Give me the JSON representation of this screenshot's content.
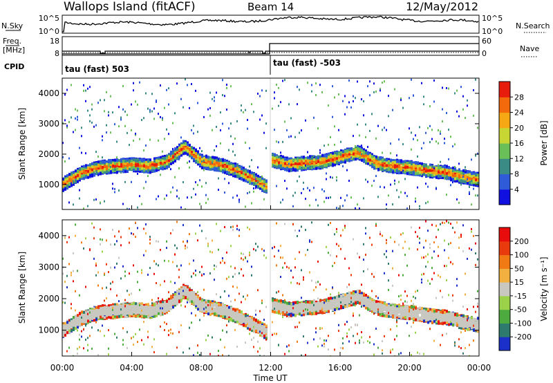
{
  "header": {
    "site": "Wallops Island (fitACF)",
    "beam": "Beam 14",
    "date": "12/May/2012"
  },
  "noise_panel": {
    "left_label": "N.Sky",
    "right_label": "N.Search",
    "left_ticks": [
      "10^5",
      "10^0"
    ],
    "right_ticks": [
      "10^5",
      "10^0"
    ]
  },
  "freq_panel": {
    "left_label": "Freq.",
    "left_unit": "[MHz]",
    "right_label": "Nave",
    "left_ticks": [
      "18",
      "8"
    ],
    "right_ticks": [
      "60",
      "0"
    ]
  },
  "cpid": {
    "label": "CPID",
    "segments": [
      {
        "text": "tau (fast) 503",
        "start_hour": 0
      },
      {
        "text": "tau (fast) -503",
        "start_hour": 12
      }
    ]
  },
  "power_panel": {
    "ylabel": "Slant Range [km]",
    "yticks": [
      "1000",
      "2000",
      "3000",
      "4000"
    ],
    "colorbar_label": "Power [dB]",
    "colorbar_ticks": [
      "4",
      "8",
      "12",
      "16",
      "20",
      "24",
      "28"
    ],
    "colorbar_colors": [
      "#1010e0",
      "#2f5ad8",
      "#3a8a86",
      "#6abf58",
      "#c8d634",
      "#f5a814",
      "#f26a0c",
      "#e81c0c"
    ]
  },
  "velocity_panel": {
    "ylabel": "Slant Range [km]",
    "yticks": [
      "1000",
      "2000",
      "3000",
      "4000"
    ],
    "colorbar_label": "Velocity [m s⁻¹]",
    "colorbar_ticks": [
      "200",
      "100",
      "50",
      "15",
      "-15",
      "-50",
      "-100",
      "-200"
    ],
    "colorbar_colors": [
      "#1a30c8",
      "#2e7a6e",
      "#4caa3e",
      "#9bd24a",
      "#c8c8c0",
      "#f2b040",
      "#f27a14",
      "#e83a0c",
      "#e80c0c"
    ]
  },
  "x_axis": {
    "ticks": [
      "00:00",
      "04:00",
      "08:00",
      "12:00",
      "16:00",
      "20:00",
      "00:00"
    ],
    "label": "Time UT"
  },
  "chart_data": {
    "type": "heatmap",
    "x_range_hours": [
      0,
      24
    ],
    "y_range_km": [
      180,
      4500
    ],
    "power_bands": [
      {
        "hours": [
          0,
          1,
          2,
          3,
          4,
          5,
          6,
          7,
          8,
          9,
          10,
          11,
          11.8
        ],
        "range_km": [
          1050,
          1400,
          1600,
          1650,
          1700,
          1650,
          1800,
          2300,
          1800,
          1700,
          1500,
          1200,
          950
        ],
        "peak_db": 28
      },
      {
        "hours": [
          12,
          13,
          14,
          15,
          16,
          17,
          18,
          19,
          20,
          21,
          22,
          23,
          24
        ],
        "range_km": [
          1850,
          1700,
          1750,
          1800,
          1950,
          2100,
          1750,
          1650,
          1600,
          1500,
          1450,
          1300,
          1200
        ],
        "peak_db": 28
      }
    ]
  }
}
